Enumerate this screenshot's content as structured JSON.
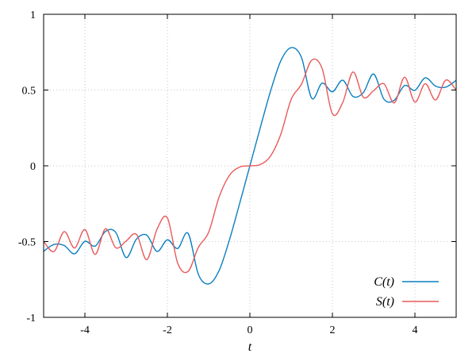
{
  "chart_data": {
    "type": "line",
    "title": "",
    "xlabel": "t",
    "ylabel": "",
    "xlim": [
      -5,
      5
    ],
    "ylim": [
      -1,
      1
    ],
    "xticks": [
      -4,
      -2,
      0,
      2,
      4
    ],
    "xtick_labels": [
      "-4",
      "-2",
      "0",
      "2",
      "4"
    ],
    "yticks": [
      -1,
      -0.5,
      0,
      0.5,
      1
    ],
    "ytick_labels": [
      "-1",
      "-0.5",
      "0",
      "0.5",
      "1"
    ],
    "grid": true,
    "legend_position": "bottom-right",
    "series": [
      {
        "name": "C(t)",
        "color": "#0a7fbf",
        "x": [
          -5,
          -4.75,
          -4.5,
          -4.25,
          -4,
          -3.75,
          -3.5,
          -3.25,
          -3,
          -2.75,
          -2.5,
          -2.25,
          -2,
          -1.75,
          -1.5,
          -1.25,
          -1,
          -0.75,
          -0.5,
          -0.25,
          0,
          0.25,
          0.5,
          0.75,
          1,
          1.25,
          1.5,
          1.75,
          2,
          2.25,
          2.5,
          2.75,
          3,
          3.25,
          3.5,
          3.75,
          4,
          4.25,
          4.5,
          4.75,
          5
        ],
        "y": [
          -0.5636,
          -0.5191,
          -0.5261,
          -0.5808,
          -0.4984,
          -0.5298,
          -0.4327,
          -0.4398,
          -0.6057,
          -0.4833,
          -0.4574,
          -0.5651,
          -0.4883,
          -0.5458,
          -0.4453,
          -0.7153,
          -0.7799,
          -0.6935,
          -0.4923,
          -0.25,
          0.0,
          0.25,
          0.4923,
          0.6935,
          0.7799,
          0.7153,
          0.4453,
          0.5458,
          0.4883,
          0.5651,
          0.4574,
          0.4833,
          0.6057,
          0.4398,
          0.4327,
          0.5298,
          0.4984,
          0.5808,
          0.5261,
          0.5191,
          0.5636
        ]
      },
      {
        "name": "S(t)",
        "color": "#e85a5a",
        "x": [
          -5,
          -4.75,
          -4.5,
          -4.25,
          -4,
          -3.75,
          -3.5,
          -3.25,
          -3,
          -2.75,
          -2.5,
          -2.25,
          -2,
          -1.75,
          -1.5,
          -1.25,
          -1,
          -0.75,
          -0.5,
          -0.25,
          0,
          0.25,
          0.5,
          0.75,
          1,
          1.25,
          1.5,
          1.75,
          2,
          2.25,
          2.5,
          2.75,
          3,
          3.25,
          3.5,
          3.75,
          4,
          4.25,
          4.5,
          4.75,
          5
        ],
        "y": [
          -0.4992,
          -0.5659,
          -0.4342,
          -0.5424,
          -0.4205,
          -0.5848,
          -0.4153,
          -0.541,
          -0.4963,
          -0.4524,
          -0.6192,
          -0.4177,
          -0.3434,
          -0.643,
          -0.6975,
          -0.5386,
          -0.4383,
          -0.2089,
          -0.0647,
          -0.0082,
          0.0,
          0.0082,
          0.0647,
          0.2089,
          0.4383,
          0.5386,
          0.6975,
          0.643,
          0.3434,
          0.4177,
          0.6192,
          0.4524,
          0.4963,
          0.541,
          0.4153,
          0.5848,
          0.4205,
          0.5424,
          0.4342,
          0.5659,
          0.4992
        ]
      }
    ]
  }
}
